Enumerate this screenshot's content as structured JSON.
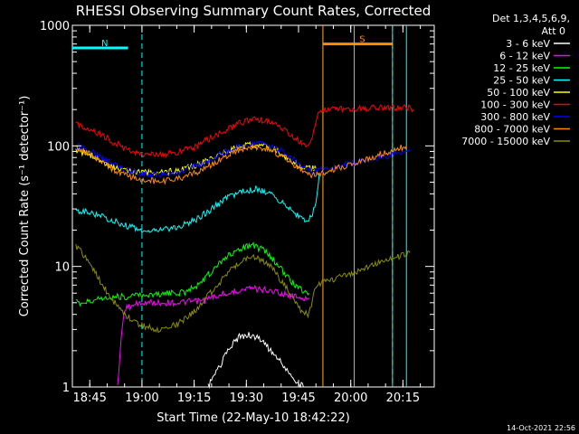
{
  "chart_data": {
    "type": "line",
    "title": "RHESSI Observing Summary Count Rates, Corrected",
    "xlabel": "Start Time (22-May-10 18:42:22)",
    "ylabel": "Corrected Count Rate (s⁻¹ detector⁻¹)",
    "y_scale": "log",
    "ylim": [
      1,
      1000
    ],
    "xlim": [
      "18:40",
      "20:24"
    ],
    "x_ticks": [
      "18:45",
      "19:00",
      "19:15",
      "19:30",
      "19:45",
      "20:00",
      "20:15"
    ],
    "y_ticks": [
      "1",
      "10",
      "100",
      "1000"
    ],
    "legend_header": [
      "Det 1,3,4,5,6,9,",
      "Att 0"
    ],
    "legend_position": "right",
    "footer": "14-Oct-2021 22:56",
    "flags": [
      {
        "label": "N",
        "color": "#00ffff",
        "bar_from": "18:40",
        "bar_to": "18:56",
        "dash_at": "19:00",
        "value": 650
      },
      {
        "label": "S",
        "color": "#ff8c00",
        "bar_from": "19:52",
        "bar_to": "20:12",
        "dash_at": "20:12",
        "value": 700
      }
    ],
    "gaps": [
      {
        "color": "#00ffff",
        "from": "19:52",
        "to": "20:01"
      },
      {
        "color": "#00ffff",
        "from": "20:12",
        "to": "20:16"
      },
      {
        "color": "#ff8c00",
        "at": "19:52"
      }
    ],
    "series": [
      {
        "name": "3 - 6 keV",
        "color": "#ffffff",
        "points": [
          [
            "19:19",
            1
          ],
          [
            "19:21",
            1.3
          ],
          [
            "19:23",
            1.6
          ],
          [
            "19:25",
            2.1
          ],
          [
            "19:28",
            2.6
          ],
          [
            "19:31",
            2.7
          ],
          [
            "19:34",
            2.5
          ],
          [
            "19:37",
            2.0
          ],
          [
            "19:40",
            1.6
          ],
          [
            "19:42",
            1.3
          ],
          [
            "19:44",
            1.1
          ],
          [
            "19:47",
            1.0
          ]
        ]
      },
      {
        "name": "6 - 12 keV",
        "color": "#ff00ff",
        "points": [
          [
            "18:53",
            1
          ],
          [
            "18:54",
            2.5
          ],
          [
            "18:55",
            4.5
          ],
          [
            "19:00",
            5
          ],
          [
            "19:10",
            5
          ],
          [
            "19:18",
            5.2
          ],
          [
            "19:22",
            5.8
          ],
          [
            "19:26",
            6.2
          ],
          [
            "19:30",
            6.5
          ],
          [
            "19:34",
            6.5
          ],
          [
            "19:38",
            6.2
          ],
          [
            "19:42",
            5.8
          ],
          [
            "19:46",
            5.5
          ],
          [
            "19:48",
            5.5
          ]
        ]
      },
      {
        "name": "12 - 25 keV",
        "color": "#00ff00",
        "points": [
          [
            "18:41",
            5
          ],
          [
            "18:44",
            5
          ],
          [
            "18:48",
            5.4
          ],
          [
            "18:52",
            5.6
          ],
          [
            "18:56",
            5.6
          ],
          [
            "19:00",
            5.8
          ],
          [
            "19:06",
            5.9
          ],
          [
            "19:12",
            6.1
          ],
          [
            "19:16",
            7
          ],
          [
            "19:20",
            9
          ],
          [
            "19:24",
            12
          ],
          [
            "19:28",
            14
          ],
          [
            "19:32",
            15
          ],
          [
            "19:36",
            13
          ],
          [
            "19:40",
            9.5
          ],
          [
            "19:44",
            7
          ],
          [
            "19:47",
            6
          ],
          [
            "19:48",
            6
          ]
        ]
      },
      {
        "name": "25 - 50 keV",
        "color": "#00ffff",
        "points": [
          [
            "18:41",
            29
          ],
          [
            "18:45",
            28
          ],
          [
            "18:50",
            25
          ],
          [
            "18:55",
            22
          ],
          [
            "19:00",
            20
          ],
          [
            "19:05",
            20.5
          ],
          [
            "19:10",
            21
          ],
          [
            "19:15",
            24
          ],
          [
            "19:20",
            30
          ],
          [
            "19:25",
            38
          ],
          [
            "19:29",
            42
          ],
          [
            "19:33",
            44
          ],
          [
            "19:37",
            40
          ],
          [
            "19:41",
            33
          ],
          [
            "19:45",
            26
          ],
          [
            "19:48",
            24
          ],
          [
            "19:50",
            32
          ],
          [
            "19:51",
            60
          ]
        ]
      },
      {
        "name": "50 - 100 keV",
        "color": "#ffff00",
        "points": [
          [
            "18:41",
            92
          ],
          [
            "18:45",
            85
          ],
          [
            "18:50",
            70
          ],
          [
            "18:55",
            62
          ],
          [
            "19:00",
            60
          ],
          [
            "19:06",
            60
          ],
          [
            "19:12",
            64
          ],
          [
            "19:17",
            72
          ],
          [
            "19:22",
            85
          ],
          [
            "19:27",
            96
          ],
          [
            "19:31",
            102
          ],
          [
            "19:35",
            100
          ],
          [
            "19:39",
            90
          ],
          [
            "19:43",
            75
          ],
          [
            "19:47",
            65
          ],
          [
            "19:50",
            65
          ]
        ]
      },
      {
        "name": "100 - 300 keV",
        "color": "#ff0000",
        "points": [
          [
            "18:41",
            150
          ],
          [
            "18:45",
            140
          ],
          [
            "18:50",
            115
          ],
          [
            "18:55",
            95
          ],
          [
            "19:00",
            85
          ],
          [
            "19:05",
            84
          ],
          [
            "19:10",
            88
          ],
          [
            "19:15",
            98
          ],
          [
            "19:20",
            118
          ],
          [
            "19:25",
            140
          ],
          [
            "19:29",
            158
          ],
          [
            "19:33",
            165
          ],
          [
            "19:37",
            158
          ],
          [
            "19:41",
            138
          ],
          [
            "19:45",
            110
          ],
          [
            "19:48",
            98
          ],
          [
            "19:50",
            150
          ],
          [
            "19:51",
            200
          ],
          [
            "20:17",
            210
          ],
          [
            "20:18",
            200
          ]
        ]
      },
      {
        "name": "300 - 800 keV",
        "color": "#0000ff",
        "points": [
          [
            "18:41",
            100
          ],
          [
            "18:45",
            92
          ],
          [
            "18:50",
            76
          ],
          [
            "18:55",
            64
          ],
          [
            "19:00",
            58
          ],
          [
            "19:05",
            57
          ],
          [
            "19:10",
            60
          ],
          [
            "19:15",
            67
          ],
          [
            "19:20",
            78
          ],
          [
            "19:25",
            92
          ],
          [
            "19:29",
            102
          ],
          [
            "19:33",
            106
          ],
          [
            "19:37",
            100
          ],
          [
            "19:41",
            88
          ],
          [
            "19:45",
            72
          ],
          [
            "19:48",
            62
          ],
          [
            "19:50",
            62
          ],
          [
            "20:17",
            90
          ]
        ]
      },
      {
        "name": "800 - 7000 keV",
        "color": "#ff8c00",
        "points": [
          [
            "18:41",
            96
          ],
          [
            "18:45",
            86
          ],
          [
            "18:50",
            68
          ],
          [
            "18:55",
            57
          ],
          [
            "19:00",
            52
          ],
          [
            "19:05",
            51
          ],
          [
            "19:10",
            53
          ],
          [
            "19:15",
            59
          ],
          [
            "19:20",
            70
          ],
          [
            "19:25",
            84
          ],
          [
            "19:29",
            95
          ],
          [
            "19:33",
            98
          ],
          [
            "19:37",
            92
          ],
          [
            "19:41",
            80
          ],
          [
            "19:45",
            66
          ],
          [
            "19:48",
            57
          ],
          [
            "19:50",
            57
          ],
          [
            "20:16",
            100
          ]
        ]
      },
      {
        "name": "7000 - 15000 keV",
        "color": "#8b8b00",
        "points": [
          [
            "18:41",
            15
          ],
          [
            "18:45",
            10.5
          ],
          [
            "18:48",
            7.5
          ],
          [
            "18:51",
            5.5
          ],
          [
            "18:55",
            4.0
          ],
          [
            "19:00",
            3.2
          ],
          [
            "19:05",
            3.0
          ],
          [
            "19:10",
            3.3
          ],
          [
            "19:15",
            4.2
          ],
          [
            "19:20",
            6.2
          ],
          [
            "19:25",
            9
          ],
          [
            "19:29",
            11.5
          ],
          [
            "19:33",
            12
          ],
          [
            "19:37",
            10
          ],
          [
            "19:41",
            7
          ],
          [
            "19:45",
            4.5
          ],
          [
            "19:48",
            4.0
          ],
          [
            "19:50",
            7
          ],
          [
            "20:17",
            13
          ]
        ]
      }
    ]
  }
}
